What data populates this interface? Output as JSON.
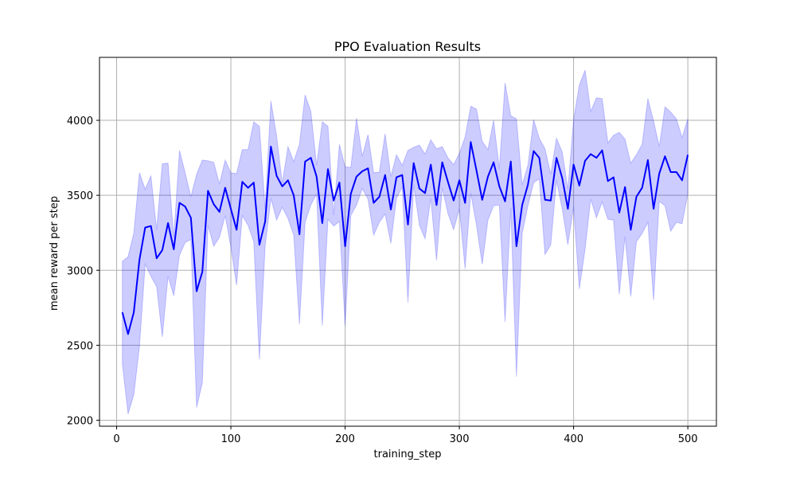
{
  "chart_data": {
    "type": "line",
    "title": "PPO Evaluation Results",
    "xlabel": "training_step",
    "ylabel": "mean reward per step",
    "xlim": [
      -15,
      525
    ],
    "ylim": [
      1960,
      4420
    ],
    "xticks": [
      0,
      100,
      200,
      300,
      400,
      500
    ],
    "yticks": [
      2000,
      2500,
      3000,
      3500,
      4000
    ],
    "grid": true,
    "colors": {
      "line": "#0000ff",
      "band": "#0000ff"
    },
    "series": [
      {
        "x": [
          5,
          10,
          15,
          20,
          25,
          30,
          35,
          40,
          45,
          50,
          55,
          60,
          65,
          70,
          75,
          80,
          85,
          90,
          95,
          100,
          105,
          110,
          115,
          120,
          125,
          130,
          135,
          140,
          145,
          150,
          155,
          160,
          165,
          170,
          175,
          180,
          185,
          190,
          195,
          200,
          205,
          210,
          215,
          220,
          225,
          230,
          235,
          240,
          245,
          250,
          255,
          260,
          265,
          270,
          275,
          280,
          285,
          290,
          295,
          300,
          305,
          310,
          315,
          320,
          325,
          330,
          335,
          340,
          345,
          350,
          355,
          360,
          365,
          370,
          375,
          380,
          385,
          390,
          395,
          400,
          405,
          410,
          415,
          420,
          425,
          430,
          435,
          440,
          445,
          450,
          455,
          460,
          465,
          470,
          475,
          480,
          485,
          490,
          495,
          500
        ],
        "mean": [
          2720,
          2575,
          2720,
          3070,
          3285,
          3295,
          3080,
          3135,
          3315,
          3140,
          3450,
          3425,
          3350,
          2860,
          2990,
          3530,
          3440,
          3390,
          3550,
          3410,
          3270,
          3590,
          3550,
          3585,
          3170,
          3325,
          3825,
          3630,
          3560,
          3600,
          3500,
          3240,
          3725,
          3750,
          3625,
          3315,
          3675,
          3465,
          3585,
          3160,
          3510,
          3625,
          3660,
          3680,
          3450,
          3490,
          3635,
          3405,
          3620,
          3635,
          3305,
          3715,
          3545,
          3515,
          3705,
          3435,
          3720,
          3590,
          3465,
          3600,
          3450,
          3855,
          3665,
          3470,
          3625,
          3720,
          3560,
          3460,
          3725,
          3160,
          3435,
          3570,
          3795,
          3750,
          3470,
          3465,
          3750,
          3615,
          3410,
          3705,
          3565,
          3730,
          3775,
          3750,
          3800,
          3595,
          3620,
          3385,
          3555,
          3270,
          3490,
          3550,
          3735,
          3410,
          3645,
          3760,
          3655,
          3655,
          3600,
          3770
        ],
        "upper": [
          3060,
          3090,
          3250,
          3650,
          3540,
          3630,
          3270,
          3710,
          3715,
          3220,
          3800,
          3650,
          3490,
          3640,
          3735,
          3730,
          3720,
          3575,
          3735,
          3650,
          3645,
          3805,
          3805,
          3990,
          3960,
          3410,
          4130,
          3895,
          3580,
          3825,
          3725,
          3840,
          4170,
          4060,
          3700,
          3990,
          3960,
          3370,
          3840,
          3690,
          3685,
          4015,
          3760,
          3905,
          3650,
          3655,
          3910,
          3625,
          3770,
          3700,
          3800,
          3820,
          3835,
          3775,
          3870,
          3810,
          3825,
          3750,
          3705,
          3780,
          3890,
          4095,
          4075,
          3860,
          3805,
          4000,
          3675,
          4250,
          4030,
          4010,
          3570,
          3700,
          4005,
          3880,
          3810,
          3640,
          3880,
          3790,
          3540,
          4005,
          4235,
          4335,
          4060,
          4150,
          4145,
          3850,
          3900,
          3920,
          3875,
          3715,
          3770,
          3840,
          4145,
          3995,
          3825,
          4090,
          4055,
          4010,
          3885,
          4010
        ],
        "lower": [
          2375,
          2040,
          2170,
          2490,
          3040,
          2960,
          2890,
          2555,
          2960,
          2830,
          3100,
          3185,
          3205,
          2085,
          2250,
          3300,
          3160,
          3220,
          3365,
          3155,
          2900,
          3365,
          3300,
          3190,
          2405,
          3160,
          3480,
          3335,
          3420,
          3345,
          3235,
          2640,
          3320,
          3435,
          3510,
          2630,
          3340,
          3295,
          3325,
          2630,
          3365,
          3435,
          3545,
          3475,
          3235,
          3320,
          3375,
          3180,
          3480,
          3555,
          2785,
          3570,
          3300,
          3210,
          3480,
          3065,
          3550,
          3380,
          3270,
          3410,
          3010,
          3515,
          3300,
          3040,
          3335,
          3430,
          3435,
          2655,
          3415,
          2290,
          3245,
          3430,
          3585,
          3610,
          3105,
          3170,
          3600,
          3410,
          3170,
          3420,
          2875,
          3140,
          3475,
          3350,
          3455,
          3340,
          3335,
          2840,
          3225,
          2825,
          3190,
          3245,
          3320,
          2800,
          3460,
          3430,
          3260,
          3320,
          3310,
          3510
        ]
      }
    ]
  }
}
